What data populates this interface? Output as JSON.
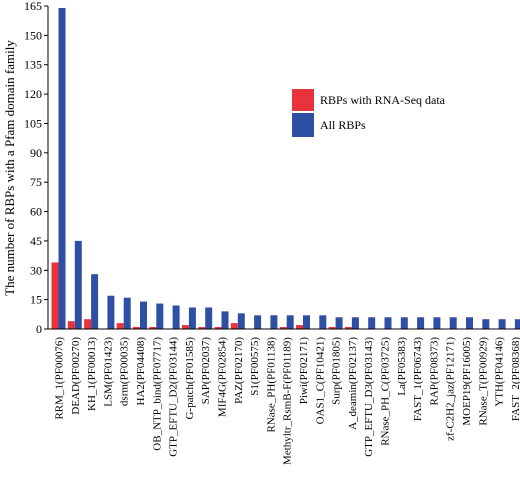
{
  "chart_data": {
    "type": "bar",
    "title": "",
    "xlabel": "",
    "ylabel": "The number of RBPs with a Pfam domain family",
    "ylim": [
      0,
      165
    ],
    "yticks": [
      0,
      15,
      30,
      45,
      60,
      75,
      90,
      105,
      120,
      135,
      150,
      165
    ],
    "grid": false,
    "legend_position": "right",
    "categories": [
      "RRM_1(PF00076)",
      "DEAD(PF00270)",
      "KH_1(PF00013)",
      "LSM(PF01423)",
      "dsrm(PF00035)",
      "HA2(PF04408)",
      "OB_NTP_bind(PF07717)",
      "GTP_EFTU_D2(PF03144)",
      "G-patch(PF01585)",
      "SAP(PF02037)",
      "MIF4G(PF02854)",
      "PAZ(PF02170)",
      "S1(PF00575)",
      "RNase_PH(PF01138)",
      "Methyltr_RsmB-F(PF01189)",
      "Piwi(PF02171)",
      "OAS1_C(PF10421)",
      "Surp(PF01805)",
      "A_deamin(PF02137)",
      "GTP_EFTU_D3(PF03143)",
      "RNase_PH_C(PF03725)",
      "La(PF05383)",
      "FAST_1(PF06743)",
      "RAP(PF08373)",
      "zf-C2H2_jaz(PF12171)",
      "MOEP19(PF16005)",
      "RNase_T(PF00929)",
      "YTH(PF04146)",
      "FAST_2(PF08368)"
    ],
    "series": [
      {
        "name": "RBPs with RNA-Seq data",
        "color": "#e8323c",
        "values": [
          34,
          4,
          5,
          0,
          3,
          1,
          1,
          0,
          2,
          1,
          1,
          3,
          0,
          0,
          1,
          2,
          0,
          1,
          1,
          0,
          0,
          0,
          0,
          0,
          0,
          0,
          0,
          0,
          0
        ]
      },
      {
        "name": "All RBPs",
        "color": "#2e4fa3",
        "values": [
          164,
          45,
          28,
          17,
          16,
          14,
          13,
          12,
          11,
          11,
          9,
          8,
          7,
          7,
          7,
          7,
          7,
          6,
          6,
          6,
          6,
          6,
          6,
          6,
          6,
          6,
          5,
          5,
          5
        ]
      }
    ]
  }
}
